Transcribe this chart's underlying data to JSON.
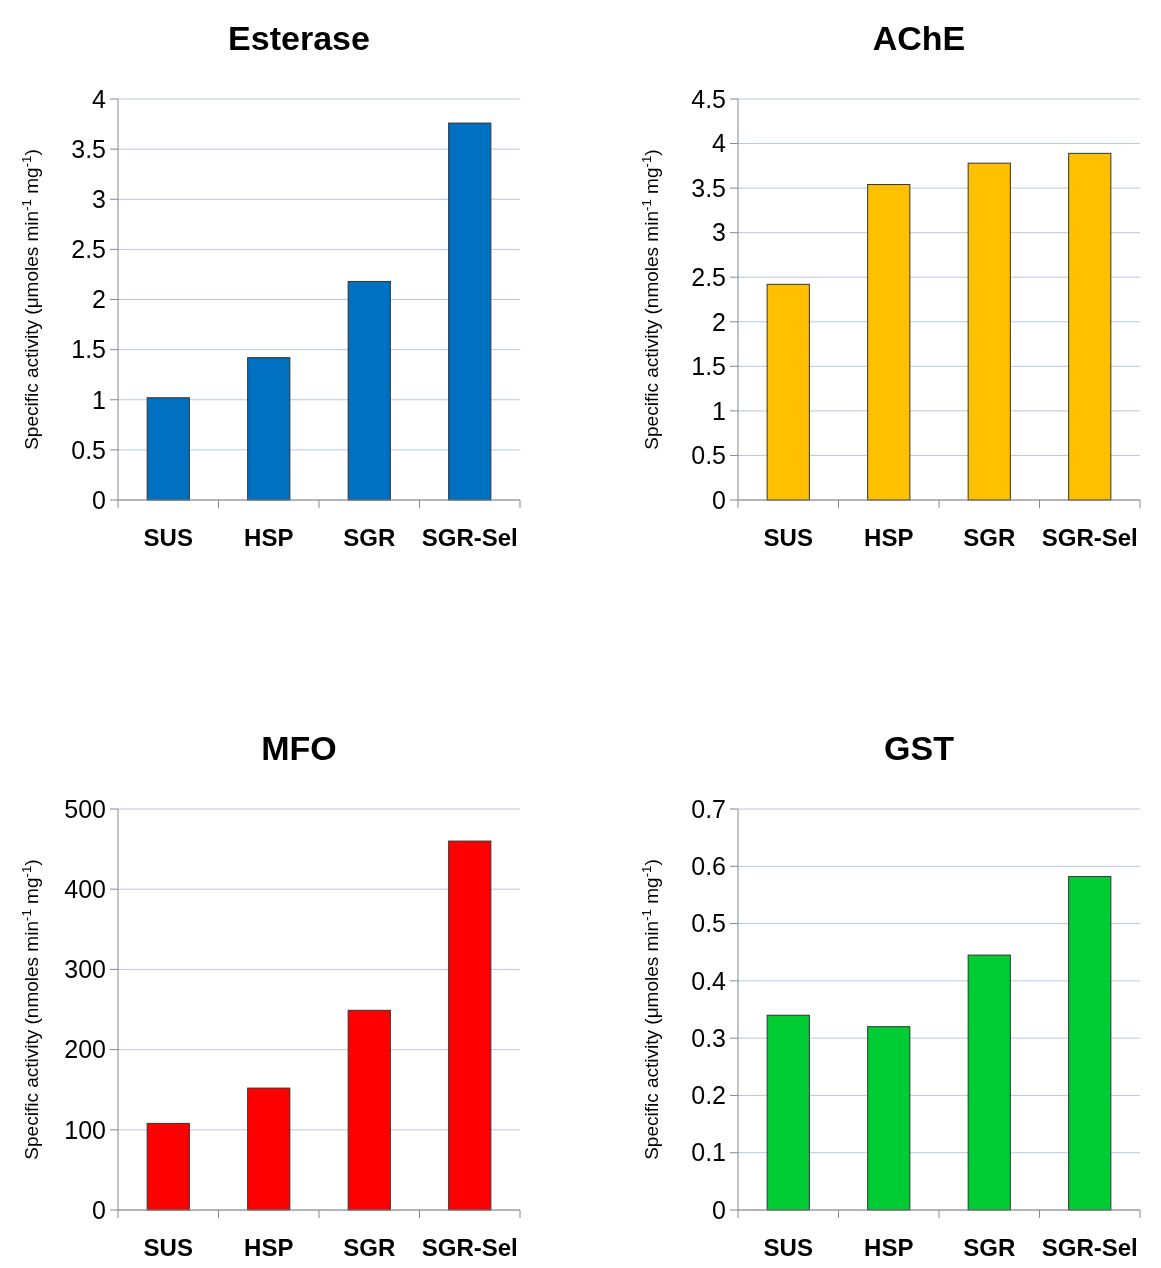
{
  "chart_data": [
    {
      "type": "bar",
      "title": "Esterase",
      "ylabel": "Specific activity (μmoles min$^{-1}$ mg$^{-1}$)",
      "categories": [
        "SUS",
        "HSP",
        "SGR",
        "SGR-Sel"
      ],
      "values": [
        1.02,
        1.42,
        2.18,
        3.76
      ],
      "color": "#0070c0",
      "ylim": [
        0,
        4
      ],
      "yticks": [
        0,
        0.5,
        1,
        1.5,
        2,
        2.5,
        3,
        3.5,
        4
      ],
      "grid": "y"
    },
    {
      "type": "bar",
      "title": "AChE",
      "ylabel": "Specific activity (nmoles min$^{-1}$ mg$^{-1}$)",
      "categories": [
        "SUS",
        "HSP",
        "SGR",
        "SGR-Sel"
      ],
      "values": [
        2.42,
        3.54,
        3.78,
        3.89
      ],
      "color": "#ffc000",
      "ylim": [
        0,
        4.5
      ],
      "yticks": [
        0,
        0.5,
        1,
        1.5,
        2,
        2.5,
        3,
        3.5,
        4,
        4.5
      ],
      "grid": "y"
    },
    {
      "type": "bar",
      "title": "MFO",
      "ylabel": "Specific activity (nmoles min$^{-1}$ mg$^{-1}$)",
      "categories": [
        "SUS",
        "HSP",
        "SGR",
        "SGR-Sel"
      ],
      "values": [
        108,
        152,
        249,
        460
      ],
      "color": "#ff0000",
      "ylim": [
        0,
        500
      ],
      "yticks": [
        0,
        100,
        200,
        300,
        400,
        500
      ],
      "grid": "y"
    },
    {
      "type": "bar",
      "title": "GST",
      "ylabel": "Specific activity (μmoles min$^{-1}$ mg$^{-1}$)",
      "categories": [
        "SUS",
        "HSP",
        "SGR",
        "SGR-Sel"
      ],
      "values": [
        0.34,
        0.32,
        0.445,
        0.582
      ],
      "color": "#00cc33",
      "ylim": [
        0,
        0.7
      ],
      "yticks": [
        0,
        0.1,
        0.2,
        0.3,
        0.4,
        0.5,
        0.6,
        0.7
      ],
      "grid": "y"
    }
  ]
}
